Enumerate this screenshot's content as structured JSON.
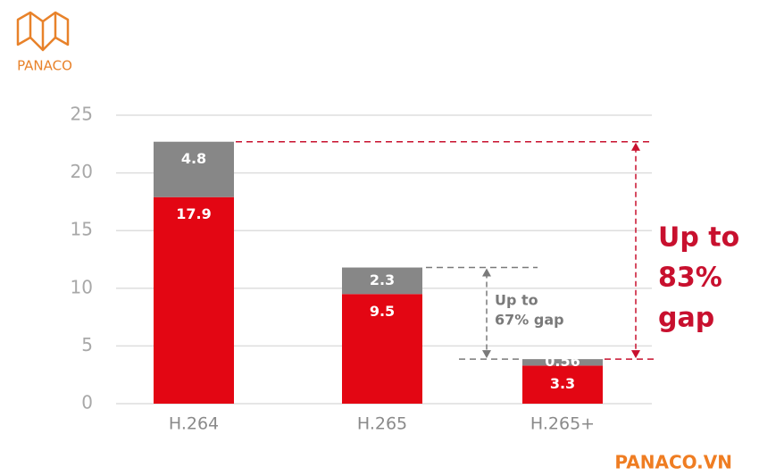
{
  "chart_data": {
    "type": "stacked-bar",
    "categories": [
      "H.264",
      "H.265",
      "H.265+"
    ],
    "series": [
      {
        "color": "#e30613",
        "values": [
          17.9,
          9.5,
          3.3
        ]
      },
      {
        "color": "#878787",
        "values": [
          4.8,
          2.3,
          0.56
        ]
      }
    ],
    "ylim": [
      0,
      25
    ],
    "yticks": [
      0,
      5,
      10,
      15,
      20,
      25
    ],
    "grid": true,
    "annotations": [
      {
        "lines": [
          "Up to",
          "67% gap"
        ],
        "color": "#7a7a7a"
      },
      {
        "lines": [
          "Up to",
          "83%",
          "gap"
        ],
        "color": "#c8102e"
      }
    ]
  },
  "logo": {
    "text": "PANACO"
  },
  "footer": {
    "text": "PANACO.VN"
  }
}
